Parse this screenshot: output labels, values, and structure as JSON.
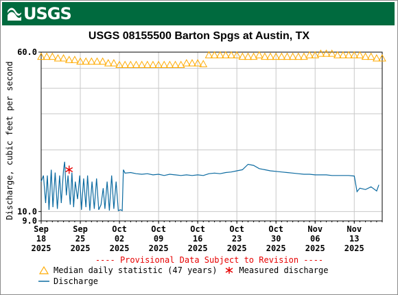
{
  "brand": {
    "logo_text": "USGS",
    "banner_color": "#006a3e"
  },
  "chart_data": {
    "type": "line",
    "title": "USGS 08155500 Barton Spgs at Austin, TX",
    "ylabel": "Discharge, cubic feet per second",
    "xlabel": "",
    "yscale": "log",
    "ylim": [
      9.0,
      60.0
    ],
    "y_ticks": [
      {
        "value": 60,
        "label": "60.0"
      },
      {
        "value": 10,
        "label": "10.0"
      },
      {
        "value": 9,
        "label": "9.0"
      }
    ],
    "xlim": [
      "2025-09-18",
      "2025-11-18"
    ],
    "x_ticks": [
      {
        "date": "2025-09-18",
        "month": "Sep",
        "day": "18",
        "year": "2025"
      },
      {
        "date": "2025-09-25",
        "month": "Sep",
        "day": "25",
        "year": "2025"
      },
      {
        "date": "2025-10-02",
        "month": "Oct",
        "day": "02",
        "year": "2025"
      },
      {
        "date": "2025-10-09",
        "month": "Oct",
        "day": "09",
        "year": "2025"
      },
      {
        "date": "2025-10-16",
        "month": "Oct",
        "day": "16",
        "year": "2025"
      },
      {
        "date": "2025-10-23",
        "month": "Oct",
        "day": "23",
        "year": "2025"
      },
      {
        "date": "2025-10-30",
        "month": "Oct",
        "day": "30",
        "year": "2025"
      },
      {
        "date": "2025-11-06",
        "month": "Nov",
        "day": "06",
        "year": "2025"
      },
      {
        "date": "2025-11-13",
        "month": "Nov",
        "day": "13",
        "year": "2025"
      }
    ],
    "grid": true,
    "notice": "---- Provisional Data Subject to Revision ----",
    "colors": {
      "median": "#ffaa00",
      "discharge": "#0b6aa0",
      "measured": "#e60000",
      "notice": "#e60000",
      "grid": "#c8c8c8"
    },
    "series": [
      {
        "name": "Median daily statistic (47 years)",
        "marker": "triangle",
        "points": [
          [
            "2025-09-18",
            57
          ],
          [
            "2025-09-19",
            57
          ],
          [
            "2025-09-20",
            57
          ],
          [
            "2025-09-21",
            56
          ],
          [
            "2025-09-22",
            56
          ],
          [
            "2025-09-23",
            55
          ],
          [
            "2025-09-24",
            55
          ],
          [
            "2025-09-25",
            54
          ],
          [
            "2025-09-26",
            54
          ],
          [
            "2025-09-27",
            54
          ],
          [
            "2025-09-28",
            54
          ],
          [
            "2025-09-29",
            54
          ],
          [
            "2025-09-30",
            53
          ],
          [
            "2025-10-01",
            53
          ],
          [
            "2025-10-02",
            52
          ],
          [
            "2025-10-03",
            52
          ],
          [
            "2025-10-04",
            52
          ],
          [
            "2025-10-05",
            52
          ],
          [
            "2025-10-06",
            52
          ],
          [
            "2025-10-07",
            52
          ],
          [
            "2025-10-08",
            52
          ],
          [
            "2025-10-09",
            52
          ],
          [
            "2025-10-10",
            52
          ],
          [
            "2025-10-11",
            52
          ],
          [
            "2025-10-12",
            52
          ],
          [
            "2025-10-13",
            52
          ],
          [
            "2025-10-14",
            53
          ],
          [
            "2025-10-15",
            53
          ],
          [
            "2025-10-16",
            53
          ],
          [
            "2025-10-17",
            52.5
          ],
          [
            "2025-10-18",
            58
          ],
          [
            "2025-10-19",
            58
          ],
          [
            "2025-10-20",
            58
          ],
          [
            "2025-10-21",
            58
          ],
          [
            "2025-10-22",
            58
          ],
          [
            "2025-10-23",
            58
          ],
          [
            "2025-10-24",
            57
          ],
          [
            "2025-10-25",
            57
          ],
          [
            "2025-10-26",
            57
          ],
          [
            "2025-10-27",
            58
          ],
          [
            "2025-10-28",
            57
          ],
          [
            "2025-10-29",
            57
          ],
          [
            "2025-10-30",
            57
          ],
          [
            "2025-10-31",
            57
          ],
          [
            "2025-11-01",
            57
          ],
          [
            "2025-11-02",
            57
          ],
          [
            "2025-11-03",
            57
          ],
          [
            "2025-11-04",
            57
          ],
          [
            "2025-11-05",
            58
          ],
          [
            "2025-11-06",
            58
          ],
          [
            "2025-11-07",
            59
          ],
          [
            "2025-11-08",
            59
          ],
          [
            "2025-11-09",
            59
          ],
          [
            "2025-11-10",
            58
          ],
          [
            "2025-11-11",
            58
          ],
          [
            "2025-11-12",
            58
          ],
          [
            "2025-11-13",
            58
          ],
          [
            "2025-11-14",
            58
          ],
          [
            "2025-11-15",
            57
          ],
          [
            "2025-11-16",
            57
          ],
          [
            "2025-11-17",
            56
          ],
          [
            "2025-11-18",
            56
          ]
        ]
      },
      {
        "name": "Measured discharge",
        "marker": "asterisk",
        "points": [
          [
            "2025-09-23",
            16
          ]
        ]
      },
      {
        "name": "Discharge",
        "marker": "line",
        "points": [
          [
            "2025-09-18",
            14
          ],
          [
            "2025-09-18.4",
            15
          ],
          [
            "2025-09-18.8",
            11
          ],
          [
            "2025-09-19.1",
            15
          ],
          [
            "2025-09-19.4",
            10.2
          ],
          [
            "2025-09-19.8",
            16
          ],
          [
            "2025-09-20.1",
            10.5
          ],
          [
            "2025-09-20.5",
            15.5
          ],
          [
            "2025-09-20.9",
            10.3
          ],
          [
            "2025-09-21.3",
            15
          ],
          [
            "2025-09-21.6",
            11
          ],
          [
            "2025-09-22.0",
            16
          ],
          [
            "2025-09-22.2",
            17.5
          ],
          [
            "2025-09-22.5",
            12
          ],
          [
            "2025-09-22.8",
            15
          ],
          [
            "2025-09-23.2",
            10.8
          ],
          [
            "2025-09-23.5",
            15.5
          ],
          [
            "2025-09-23.8",
            10.5
          ],
          [
            "2025-09-24.1",
            14
          ],
          [
            "2025-09-24.5",
            11.5
          ],
          [
            "2025-09-24.9",
            15
          ],
          [
            "2025-09-25.2",
            10.2
          ],
          [
            "2025-09-25.6",
            14.5
          ],
          [
            "2025-09-26.0",
            10.5
          ],
          [
            "2025-09-26.3",
            15
          ],
          [
            "2025-09-26.7",
            10.1
          ],
          [
            "2025-09-27.1",
            14
          ],
          [
            "2025-09-27.5",
            10.3
          ],
          [
            "2025-09-27.9",
            14.5
          ],
          [
            "2025-09-28.3",
            10.2
          ],
          [
            "2025-09-28.7",
            10.8
          ],
          [
            "2025-09-29.1",
            13
          ],
          [
            "2025-09-29.4",
            10.3
          ],
          [
            "2025-09-29.8",
            14
          ],
          [
            "2025-09-30.2",
            10.1
          ],
          [
            "2025-09-30.6",
            15
          ],
          [
            "2025-10-01.0",
            10.3
          ],
          [
            "2025-10-01.4",
            14
          ],
          [
            "2025-10-01.8",
            10.1
          ],
          [
            "2025-10-02.2",
            10.2
          ],
          [
            "2025-10-02.5",
            10.1
          ],
          [
            "2025-10-02.7",
            16
          ],
          [
            "2025-10-03.0",
            15.4
          ],
          [
            "2025-10-04.0",
            15.5
          ],
          [
            "2025-10-05.0",
            15.3
          ],
          [
            "2025-10-06.0",
            15.2
          ],
          [
            "2025-10-07.0",
            15.3
          ],
          [
            "2025-10-08.0",
            15.1
          ],
          [
            "2025-10-09.0",
            15.2
          ],
          [
            "2025-10-10.0",
            15
          ],
          [
            "2025-10-11.0",
            15.2
          ],
          [
            "2025-10-12.0",
            15.1
          ],
          [
            "2025-10-13.0",
            15
          ],
          [
            "2025-10-14.0",
            15.1
          ],
          [
            "2025-10-15.0",
            15
          ],
          [
            "2025-10-16.0",
            15.1
          ],
          [
            "2025-10-17.0",
            15
          ],
          [
            "2025-10-18.0",
            15.3
          ],
          [
            "2025-10-19.0",
            15.4
          ],
          [
            "2025-10-20.0",
            15.3
          ],
          [
            "2025-10-21.0",
            15.5
          ],
          [
            "2025-10-22.0",
            15.6
          ],
          [
            "2025-10-23.0",
            15.8
          ],
          [
            "2025-10-24.0",
            16
          ],
          [
            "2025-10-25.0",
            17
          ],
          [
            "2025-10-26.0",
            16.8
          ],
          [
            "2025-10-27.0",
            16.2
          ],
          [
            "2025-10-28.0",
            16
          ],
          [
            "2025-10-29.0",
            15.8
          ],
          [
            "2025-10-30.0",
            15.7
          ],
          [
            "2025-10-31.0",
            15.6
          ],
          [
            "2025-11-01.0",
            15.5
          ],
          [
            "2025-11-02.0",
            15.4
          ],
          [
            "2025-11-03.0",
            15.3
          ],
          [
            "2025-11-04.0",
            15.2
          ],
          [
            "2025-11-05.0",
            15.2
          ],
          [
            "2025-11-06.0",
            15.1
          ],
          [
            "2025-11-07.0",
            15.1
          ],
          [
            "2025-11-08.0",
            15.1
          ],
          [
            "2025-11-09.0",
            15
          ],
          [
            "2025-11-10.0",
            15
          ],
          [
            "2025-11-11.0",
            15
          ],
          [
            "2025-11-12.0",
            15
          ],
          [
            "2025-11-13.0",
            14.9
          ],
          [
            "2025-11-13.5",
            12.5
          ],
          [
            "2025-11-14.0",
            13
          ],
          [
            "2025-11-15.0",
            12.8
          ],
          [
            "2025-11-16.0",
            13.2
          ],
          [
            "2025-11-17.0",
            12.6
          ],
          [
            "2025-11-17.4",
            13.5
          ]
        ]
      }
    ],
    "legend": {
      "position": "bottom-left",
      "entries": [
        {
          "label": "Median daily statistic (47 years)",
          "marker": "triangle"
        },
        {
          "label": "Measured discharge",
          "marker": "asterisk"
        },
        {
          "label": "Discharge",
          "marker": "line"
        }
      ]
    }
  }
}
